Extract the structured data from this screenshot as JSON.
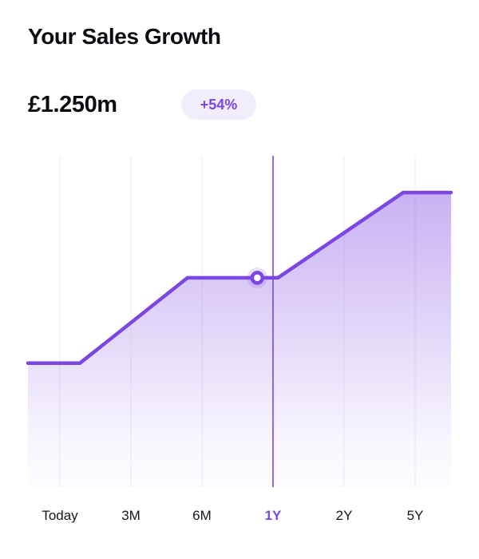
{
  "header": {
    "title": "Your Sales Growth",
    "current_value": "£1.250m",
    "growth_badge": "+54%"
  },
  "colors": {
    "accent": "#7c46e3",
    "badge_bg": "#f2edfb",
    "badge_text": "#7c46e3",
    "gridline": "#ededf2",
    "tick_label": "#16161f",
    "marker_fill": "#ffffff"
  },
  "chart_data": {
    "type": "area",
    "title": "Your Sales Growth",
    "xlabel": "",
    "ylabel": "",
    "x_tick_labels": [
      "Today",
      "3M",
      "6M",
      "1Y",
      "2Y",
      "5Y"
    ],
    "tick_t": [
      0.0755,
      0.2434,
      0.4113,
      0.5792,
      0.7472,
      0.9151
    ],
    "selected_tick_index": 3,
    "selected_tick_label": "1Y",
    "value_at_selection": 1.25,
    "value_at_selection_display": "£1.250m",
    "growth_percent": 54,
    "unit": "£m",
    "ylim": [
      0.17,
      1.88
    ],
    "grid": "vertical-only",
    "legend": "none",
    "series": [
      {
        "name": "Sales",
        "points": [
          {
            "t": 0.0,
            "value": 0.81
          },
          {
            "t": 0.123,
            "value": 0.81
          },
          {
            "t": 0.377,
            "value": 1.25
          },
          {
            "t": 0.591,
            "value": 1.25
          },
          {
            "t": 0.887,
            "value": 1.69
          },
          {
            "t": 1.0,
            "value": 1.69
          }
        ]
      }
    ],
    "marker": {
      "t": 0.542,
      "value": 1.25
    },
    "selected_line_t": 0.5792
  }
}
